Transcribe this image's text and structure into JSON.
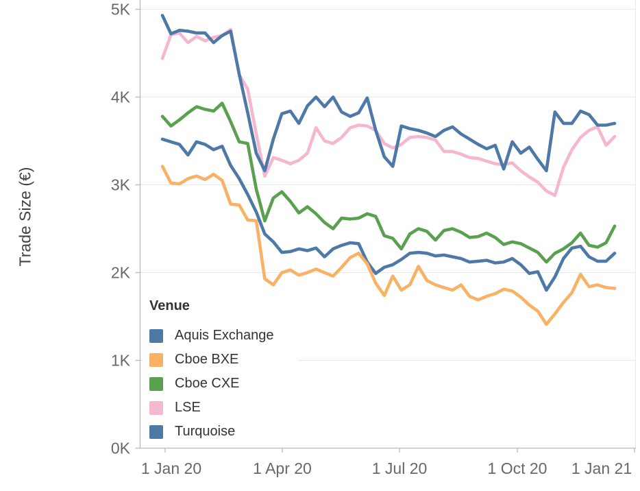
{
  "chart_data": {
    "type": "line",
    "title": "",
    "xlabel": "",
    "ylabel": "Trade Size (€)",
    "x_interval": "weekly points, late Dec 2019 through late Dec 2020",
    "x_axis": {
      "ticks": [
        "1 Jan 20",
        "1 Apr 20",
        "1 Jul 20",
        "1 Oct 20",
        "1 Jan 21"
      ]
    },
    "y_axis": {
      "range": [
        0,
        5000
      ],
      "grid": true,
      "ticks": [
        {
          "value": 0,
          "label": "0K"
        },
        {
          "value": 1000,
          "label": "1K"
        },
        {
          "value": 2000,
          "label": "2K"
        },
        {
          "value": 3000,
          "label": "3K"
        },
        {
          "value": 4000,
          "label": "4K"
        },
        {
          "value": 5000,
          "label": "5K"
        }
      ]
    },
    "legend_position": "inside lower-left",
    "series": [
      {
        "name": "Aquis Exchange",
        "color": "#4E79A7",
        "values": [
          4930,
          4720,
          4760,
          4750,
          4730,
          4730,
          4620,
          4700,
          4750,
          4260,
          3820,
          3360,
          3160,
          3520,
          3810,
          3840,
          3700,
          3900,
          4000,
          3890,
          4000,
          3830,
          3780,
          3820,
          3990,
          3620,
          3320,
          3210,
          3670,
          3640,
          3620,
          3590,
          3550,
          3620,
          3660,
          3580,
          3520,
          3460,
          3410,
          3450,
          3180,
          3490,
          3360,
          3430,
          3290,
          3160,
          3830,
          3700,
          3700,
          3840,
          3800,
          3680,
          3680,
          3700
        ]
      },
      {
        "name": "Cboe BXE",
        "color": "#F9B265",
        "values": [
          3210,
          3020,
          3010,
          3070,
          3100,
          3060,
          3120,
          3050,
          2780,
          2770,
          2600,
          2590,
          1930,
          1860,
          2000,
          2030,
          1970,
          2000,
          2040,
          2000,
          1960,
          2060,
          2170,
          2220,
          2100,
          1880,
          1740,
          1960,
          1800,
          1860,
          2070,
          1910,
          1860,
          1830,
          1800,
          1860,
          1730,
          1690,
          1730,
          1760,
          1810,
          1790,
          1720,
          1630,
          1560,
          1410,
          1530,
          1660,
          1770,
          1980,
          1840,
          1860,
          1830,
          1820
        ]
      },
      {
        "name": "Cboe CXE",
        "color": "#59A14F",
        "values": [
          3780,
          3670,
          3740,
          3820,
          3890,
          3860,
          3840,
          3930,
          3720,
          3490,
          3470,
          2950,
          2590,
          2850,
          2920,
          2810,
          2680,
          2750,
          2670,
          2570,
          2500,
          2620,
          2610,
          2620,
          2670,
          2640,
          2420,
          2390,
          2270,
          2440,
          2500,
          2470,
          2370,
          2480,
          2500,
          2460,
          2400,
          2410,
          2450,
          2400,
          2320,
          2350,
          2330,
          2280,
          2230,
          2120,
          2220,
          2270,
          2340,
          2450,
          2310,
          2290,
          2340,
          2530
        ]
      },
      {
        "name": "LSE",
        "color": "#F5B7D0",
        "values": [
          4440,
          4710,
          4730,
          4620,
          4690,
          4640,
          4680,
          4700,
          4770,
          4250,
          4090,
          3580,
          3100,
          3310,
          3280,
          3240,
          3280,
          3360,
          3650,
          3500,
          3470,
          3540,
          3650,
          3680,
          3670,
          3620,
          3470,
          3420,
          3460,
          3540,
          3550,
          3540,
          3510,
          3380,
          3380,
          3350,
          3310,
          3300,
          3270,
          3240,
          3230,
          3250,
          3160,
          3090,
          3030,
          2930,
          2880,
          3200,
          3400,
          3540,
          3620,
          3660,
          3450,
          3550
        ]
      },
      {
        "name": "Turquoise",
        "color": "#4E79A7",
        "values": [
          3520,
          3490,
          3460,
          3340,
          3490,
          3460,
          3400,
          3440,
          3220,
          3070,
          2890,
          2690,
          2440,
          2350,
          2230,
          2240,
          2270,
          2250,
          2280,
          2180,
          2270,
          2310,
          2340,
          2330,
          2120,
          1990,
          2060,
          2090,
          2150,
          2220,
          2230,
          2220,
          2190,
          2200,
          2180,
          2160,
          2120,
          2130,
          2140,
          2110,
          2120,
          2160,
          2090,
          1990,
          2010,
          1800,
          1950,
          2160,
          2280,
          2300,
          2180,
          2130,
          2130,
          2220
        ]
      }
    ]
  },
  "legend": {
    "title": "Venue",
    "items": [
      {
        "label": "Aquis Exchange",
        "color": "#4E79A7"
      },
      {
        "label": "Cboe BXE",
        "color": "#F9B265"
      },
      {
        "label": "Cboe CXE",
        "color": "#59A14F"
      },
      {
        "label": "LSE",
        "color": "#F5B7D0"
      },
      {
        "label": "Turquoise",
        "color": "#4E79A7"
      }
    ]
  }
}
